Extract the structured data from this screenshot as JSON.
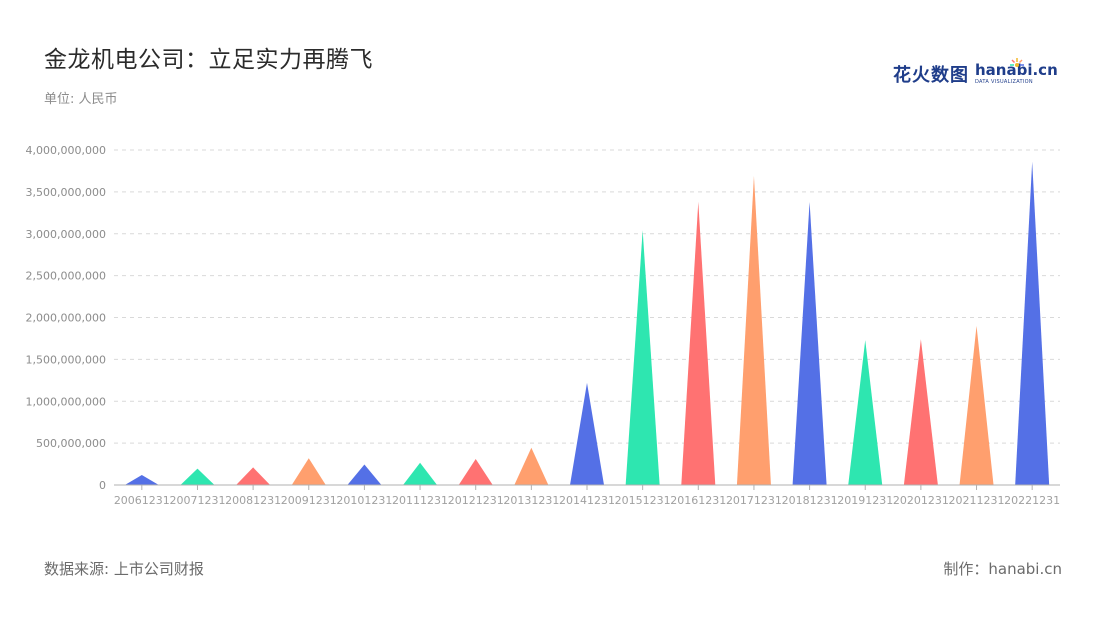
{
  "header": {
    "title": "金龙机电公司：立足实力再腾飞",
    "unit": "单位: 人民币"
  },
  "logo": {
    "cn": "花火数图",
    "en": "hanabi.cn",
    "sub": "DATA VISUALIZATION"
  },
  "footer": {
    "source": "数据来源: 上市公司财报",
    "credit": "制作：hanabi.cn"
  },
  "colors": {
    "series": [
      "#5470e6",
      "#2ee6b0",
      "#ff7272",
      "#ff9f6e"
    ],
    "grid": "#d9d9d9",
    "axis": "#b0b0b0"
  },
  "chart_data": {
    "type": "bar",
    "bar_shape": "triangle",
    "categories": [
      "20061231",
      "20071231",
      "20081231",
      "20091231",
      "20101231",
      "20111231",
      "20121231",
      "20131231",
      "20141231",
      "20151231",
      "20161231",
      "20171231",
      "20181231",
      "20191231",
      "20201231",
      "20211231",
      "20221231"
    ],
    "values": [
      120000000,
      195000000,
      210000000,
      320000000,
      245000000,
      265000000,
      310000000,
      445000000,
      1220000000,
      3040000000,
      3380000000,
      3690000000,
      3380000000,
      1730000000,
      1740000000,
      1900000000,
      3860000000
    ],
    "ylim": [
      0,
      4000000000
    ],
    "yticks": [
      "0",
      "500,000,000",
      "1,000,000,000",
      "1,500,000,000",
      "2,000,000,000",
      "2,500,000,000",
      "3,000,000,000",
      "3,500,000,000",
      "4,000,000,000"
    ],
    "grid": true,
    "xlabel": "",
    "ylabel": ""
  }
}
